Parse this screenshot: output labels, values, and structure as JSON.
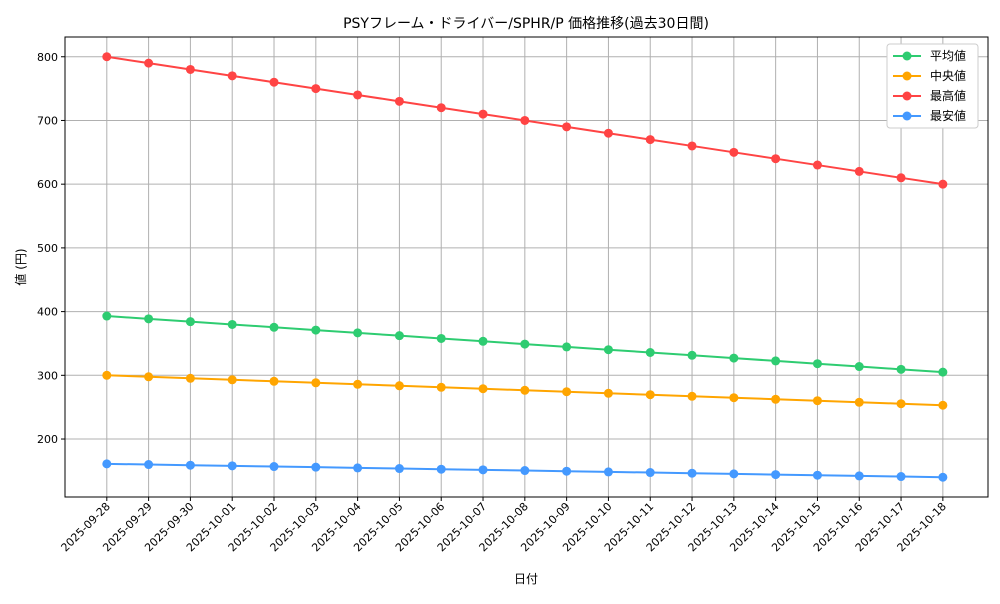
{
  "chart_data": {
    "type": "line",
    "title": "PSYフレーム・ドライバー/SPHR/P 価格推移(過去30日間)",
    "xlabel": "日付",
    "ylabel": "値 (円)",
    "ylim": [
      109,
      831
    ],
    "yticks": [
      200,
      300,
      400,
      500,
      600,
      700,
      800
    ],
    "grid": true,
    "legend_position": "top-right",
    "x": [
      "2025-09-28",
      "2025-09-29",
      "2025-09-30",
      "2025-10-01",
      "2025-10-02",
      "2025-10-03",
      "2025-10-04",
      "2025-10-05",
      "2025-10-06",
      "2025-10-07",
      "2025-10-08",
      "2025-10-09",
      "2025-10-10",
      "2025-10-11",
      "2025-10-12",
      "2025-10-13",
      "2025-10-14",
      "2025-10-15",
      "2025-10-16",
      "2025-10-17",
      "2025-10-18"
    ],
    "series": [
      {
        "name": "平均値",
        "color": "#2ecc71",
        "values": [
          393.0,
          388.6,
          384.2,
          379.8,
          375.4,
          371.0,
          366.6,
          362.2,
          357.8,
          353.4,
          349.0,
          344.6,
          340.2,
          335.8,
          331.4,
          327.0,
          322.6,
          318.2,
          313.8,
          309.4,
          305.0
        ]
      },
      {
        "name": "中央値",
        "color": "#ffa500",
        "values": [
          300.0,
          297.7,
          295.3,
          293.0,
          290.6,
          288.3,
          285.9,
          283.6,
          281.2,
          278.9,
          276.5,
          274.2,
          271.8,
          269.5,
          267.1,
          264.8,
          262.4,
          260.1,
          257.7,
          255.4,
          253.0
        ]
      },
      {
        "name": "最高値",
        "color": "#ff4444",
        "values": [
          800,
          790,
          780,
          770,
          760,
          750,
          740,
          730,
          720,
          710,
          700,
          690,
          680,
          670,
          660,
          650,
          640,
          630,
          620,
          610,
          600
        ]
      },
      {
        "name": "最安値",
        "color": "#4499ff",
        "values": [
          161.0,
          160.0,
          158.9,
          157.9,
          156.8,
          155.8,
          154.7,
          153.7,
          152.6,
          151.6,
          150.5,
          149.5,
          148.4,
          147.4,
          146.3,
          145.3,
          144.2,
          143.2,
          142.1,
          141.1,
          140.0
        ]
      }
    ]
  }
}
